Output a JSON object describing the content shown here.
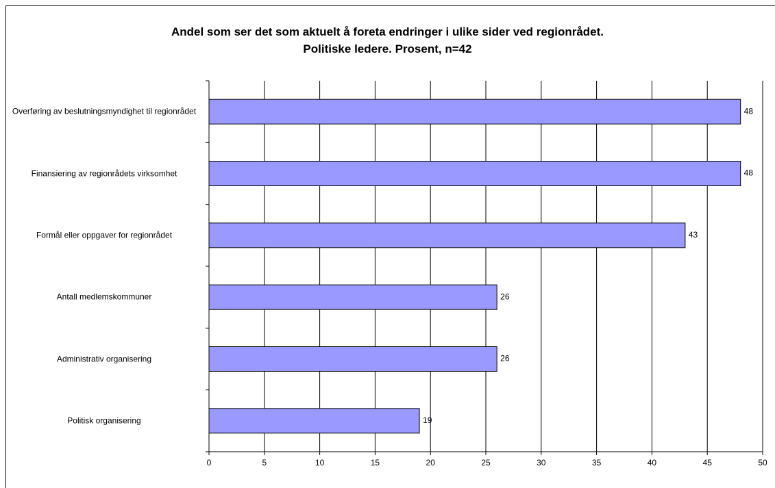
{
  "chart_data": {
    "type": "bar",
    "orientation": "horizontal",
    "title": "Andel som ser det som aktuelt å foreta endringer i ulike sider ved regionrådet.",
    "subtitle": "Politiske ledere. Prosent, n=42",
    "categories": [
      "Overføring av beslutningsmyndighet til regionrådet",
      "Finansiering av regionrådets virksomhet",
      "Formål eller oppgaver for regionrådet",
      "Antall medlemskommuner",
      "Administrativ organisering",
      "Politisk organisering"
    ],
    "values": [
      48,
      48,
      43,
      26,
      26,
      19
    ],
    "color": "#9999ff",
    "xlim": [
      0,
      50
    ],
    "xticks": [
      0,
      5,
      10,
      15,
      20,
      25,
      30,
      35,
      40,
      45,
      50
    ],
    "grid": true
  }
}
